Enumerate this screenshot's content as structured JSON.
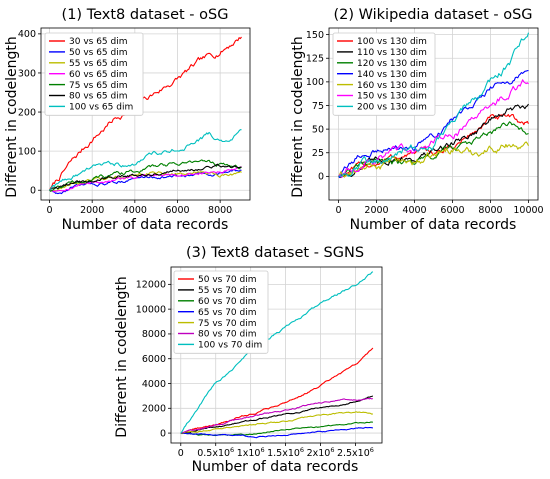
{
  "chart_data": [
    {
      "type": "line",
      "title": "(1) Text8 dataset - oSG",
      "xlabel": "Number of data records",
      "ylabel": "Different in codelength",
      "xlim": [
        -400,
        9400
      ],
      "ylim": [
        -25,
        415
      ],
      "xticks": [
        0,
        2000,
        4000,
        6000,
        8000
      ],
      "xtick_labels": [
        "0",
        "2000",
        "4000",
        "6000",
        "8000"
      ],
      "yticks": [
        0,
        100,
        200,
        300,
        400
      ],
      "ytick_labels": [
        "0",
        "100",
        "200",
        "300",
        "400"
      ],
      "grid": true,
      "legend": "top-left",
      "series": [
        {
          "name": "30 vs 65 dim",
          "color": "#ff0000",
          "x": [
            0,
            1000,
            2000,
            3000,
            4000,
            5000,
            6000,
            7000,
            8000,
            9000
          ],
          "y": [
            0,
            70,
            130,
            180,
            215,
            250,
            285,
            325,
            355,
            395
          ],
          "noise": 9
        },
        {
          "name": "50 vs 65 dim",
          "color": "#0000ff",
          "x": [
            0,
            500,
            1000,
            2000,
            3000,
            4000,
            5000,
            6000,
            7000,
            8000,
            9000
          ],
          "y": [
            0,
            -10,
            5,
            15,
            20,
            30,
            35,
            35,
            40,
            45,
            50
          ],
          "noise": 5
        },
        {
          "name": "55 vs 65 dim",
          "color": "#bcbd00",
          "x": [
            0,
            1000,
            2000,
            3000,
            4000,
            5000,
            6000,
            7000,
            8000,
            9000
          ],
          "y": [
            0,
            15,
            25,
            30,
            40,
            45,
            40,
            45,
            40,
            45
          ],
          "noise": 5
        },
        {
          "name": "60 vs 65 dim",
          "color": "#ff00ff",
          "x": [
            0,
            1000,
            2000,
            3000,
            4000,
            5000,
            6000,
            7000,
            8000,
            9000
          ],
          "y": [
            0,
            10,
            20,
            25,
            30,
            40,
            40,
            45,
            45,
            50
          ],
          "noise": 5
        },
        {
          "name": "75 vs 65 dim",
          "color": "#008000",
          "x": [
            0,
            1000,
            2000,
            3000,
            4000,
            5000,
            6000,
            7000,
            8000,
            9000
          ],
          "y": [
            0,
            20,
            30,
            40,
            50,
            60,
            70,
            75,
            65,
            60
          ],
          "noise": 6
        },
        {
          "name": "80 vs 65 dim",
          "color": "#000000",
          "x": [
            0,
            1000,
            2000,
            3000,
            4000,
            5000,
            6000,
            7000,
            8000,
            9000
          ],
          "y": [
            0,
            15,
            25,
            35,
            40,
            45,
            55,
            55,
            60,
            60
          ],
          "noise": 5
        },
        {
          "name": "100 vs 65 dim",
          "color": "#00bfbf",
          "x": [
            0,
            1000,
            2000,
            3000,
            4000,
            5000,
            6000,
            7000,
            7500,
            8000,
            8500,
            9000
          ],
          "y": [
            0,
            35,
            55,
            65,
            75,
            95,
            110,
            125,
            140,
            125,
            130,
            155
          ],
          "noise": 7
        }
      ]
    },
    {
      "type": "line",
      "title": "(2) Wikipedia dataset - oSG",
      "xlabel": "Number of data records",
      "ylabel": "Different in codelength",
      "xlim": [
        -500,
        10500
      ],
      "ylim": [
        -25,
        157
      ],
      "xticks": [
        0,
        2000,
        4000,
        6000,
        8000,
        10000
      ],
      "xtick_labels": [
        "0",
        "2000",
        "4000",
        "6000",
        "8000",
        "10000"
      ],
      "yticks": [
        0,
        25,
        50,
        75,
        100,
        125,
        150
      ],
      "ytick_labels": [
        "0",
        "25",
        "50",
        "75",
        "100",
        "125",
        "150"
      ],
      "grid": true,
      "legend": "top-left",
      "series": [
        {
          "name": "100 vs 130 dim",
          "color": "#ff0000",
          "x": [
            0,
            1000,
            2000,
            3000,
            4000,
            5000,
            6000,
            7000,
            8000,
            9000,
            10000
          ],
          "y": [
            0,
            8,
            15,
            20,
            25,
            25,
            30,
            45,
            60,
            60,
            55
          ],
          "noise": 4
        },
        {
          "name": "110 vs 130 dim",
          "color": "#000000",
          "x": [
            0,
            1000,
            2000,
            3000,
            4000,
            5000,
            6000,
            7000,
            8000,
            9000,
            10000
          ],
          "y": [
            0,
            8,
            15,
            20,
            20,
            25,
            35,
            45,
            60,
            70,
            72
          ],
          "noise": 4
        },
        {
          "name": "120 vs 130 dim",
          "color": "#008000",
          "x": [
            0,
            1000,
            2000,
            3000,
            4000,
            5000,
            6000,
            7000,
            8000,
            9000,
            10000
          ],
          "y": [
            0,
            8,
            12,
            15,
            15,
            20,
            30,
            35,
            45,
            55,
            45
          ],
          "noise": 4
        },
        {
          "name": "140 vs 130 dim",
          "color": "#0000ff",
          "x": [
            0,
            1000,
            2000,
            3000,
            4000,
            5000,
            6000,
            7000,
            8000,
            9000,
            10000
          ],
          "y": [
            0,
            20,
            28,
            30,
            30,
            45,
            60,
            80,
            95,
            100,
            110
          ],
          "noise": 4
        },
        {
          "name": "160 vs 130 dim",
          "color": "#bcbd00",
          "x": [
            0,
            1000,
            2000,
            3000,
            4000,
            5000,
            6000,
            7000,
            8000,
            9000,
            10000
          ],
          "y": [
            0,
            5,
            10,
            15,
            15,
            20,
            30,
            25,
            30,
            35,
            30
          ],
          "noise": 5
        },
        {
          "name": "150 vs 130 dim",
          "color": "#ff00ff",
          "x": [
            0,
            1000,
            2000,
            3000,
            4000,
            5000,
            6000,
            7000,
            8000,
            9000,
            10000
          ],
          "y": [
            0,
            10,
            20,
            25,
            25,
            35,
            45,
            55,
            75,
            90,
            105
          ],
          "noise": 5
        },
        {
          "name": "200 vs 130 dim",
          "color": "#00bfbf",
          "x": [
            0,
            1000,
            2000,
            3000,
            4000,
            5000,
            6000,
            7000,
            8000,
            9000,
            10000
          ],
          "y": [
            0,
            10,
            20,
            25,
            30,
            35,
            60,
            80,
            100,
            120,
            152
          ],
          "noise": 5
        }
      ]
    },
    {
      "type": "line",
      "title": "(3) Text8 dataset - SGNS",
      "xlabel": "Number of data records",
      "ylabel": "Different in codelength",
      "xlim": [
        -140000,
        2880000
      ],
      "ylim": [
        -800,
        13400
      ],
      "xticks": [
        0,
        500000,
        1000000,
        1500000,
        2000000,
        2500000
      ],
      "xtick_labels": [
        "0",
        "0.5x10",
        "1x10",
        "1.5x10",
        "2x10",
        "2.5x10"
      ],
      "xtick_exponent": "6",
      "yticks": [
        0,
        2000,
        4000,
        6000,
        8000,
        10000,
        12000
      ],
      "ytick_labels": [
        "0",
        "2000",
        "4000",
        "6000",
        "8000",
        "10000",
        "12000"
      ],
      "grid": true,
      "legend": "top-left",
      "series": [
        {
          "name": "50 vs 70 dim",
          "color": "#ff0000",
          "x": [
            0,
            500000,
            1000000,
            1500000,
            2000000,
            2500000,
            2750000
          ],
          "y": [
            0,
            700,
            1500,
            2500,
            3800,
            5500,
            6800
          ],
          "noise": 90
        },
        {
          "name": "55 vs 70 dim",
          "color": "#000000",
          "x": [
            0,
            500000,
            1000000,
            1500000,
            2000000,
            2500000,
            2750000
          ],
          "y": [
            0,
            500,
            1000,
            1500,
            2000,
            2600,
            3000
          ],
          "noise": 70
        },
        {
          "name": "60 vs 70 dim",
          "color": "#008000",
          "x": [
            0,
            500000,
            1000000,
            1500000,
            2000000,
            2500000,
            2750000
          ],
          "y": [
            0,
            -200,
            -100,
            300,
            500,
            800,
            900
          ],
          "noise": 60
        },
        {
          "name": "65 vs 70 dim",
          "color": "#0000ff",
          "x": [
            0,
            500000,
            1000000,
            1500000,
            2000000,
            2500000,
            2750000
          ],
          "y": [
            0,
            -100,
            -300,
            -200,
            100,
            400,
            500
          ],
          "noise": 60
        },
        {
          "name": "75 vs 70 dim",
          "color": "#bcbd00",
          "x": [
            0,
            500000,
            1000000,
            1500000,
            2000000,
            2500000,
            2750000
          ],
          "y": [
            0,
            300,
            700,
            1000,
            1400,
            1700,
            1500
          ],
          "noise": 70
        },
        {
          "name": "80 vs 70 dim",
          "color": "#bf00bf",
          "x": [
            0,
            500000,
            1000000,
            1500000,
            2000000,
            2500000,
            2750000
          ],
          "y": [
            0,
            600,
            1300,
            1800,
            2500,
            2700,
            2800
          ],
          "noise": 80
        },
        {
          "name": "100 vs 70 dim",
          "color": "#00bfbf",
          "x": [
            0,
            500000,
            1000000,
            1500000,
            2000000,
            2500000,
            2750000
          ],
          "y": [
            0,
            4000,
            6500,
            8500,
            10500,
            12000,
            13000
          ],
          "noise": 110
        }
      ]
    }
  ]
}
